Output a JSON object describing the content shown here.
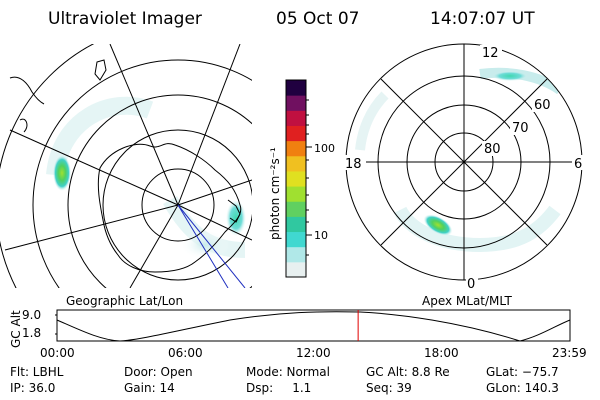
{
  "header": {
    "instrument": "Ultraviolet Imager",
    "date": "05 Oct 07",
    "time": "14:07:07 UT"
  },
  "colorbar": {
    "unit": "photon cm⁻²s⁻¹",
    "ticks": [
      "100",
      "10"
    ],
    "colors": [
      "#e8f0f0",
      "#b0e8e8",
      "#40d8d0",
      "#30c8a0",
      "#60d060",
      "#a0e030",
      "#e0e020",
      "#f0c020",
      "#f08010",
      "#e02020",
      "#c01040",
      "#701060",
      "#200040"
    ]
  },
  "left_map": {
    "caption": "Geographic Lat/Lon"
  },
  "right_map": {
    "caption": "Apex MLat/MLT",
    "mlt_labels": {
      "top": "12",
      "left": "18",
      "right": "6",
      "bottom": "0"
    },
    "mlat_labels": [
      "60",
      "70",
      "80"
    ]
  },
  "altitude_strip": {
    "axis_label": "GC Alt",
    "y_ticks": [
      "9.0",
      "1.8"
    ],
    "time_ticks": [
      "00:00",
      "06:00",
      "12:00",
      "18:00",
      "23:59"
    ],
    "current_time_fraction": 0.587,
    "marker_color": "#e00000"
  },
  "status": {
    "row1": [
      {
        "key": "flt",
        "text": "Flt: LBHL"
      },
      {
        "key": "door",
        "text": "Door: Open"
      },
      {
        "key": "mode",
        "text": "Mode: Normal"
      },
      {
        "key": "gcalt",
        "text": "GC Alt: 8.8 Re"
      },
      {
        "key": "glat",
        "text": "GLat: −75.7"
      }
    ],
    "row2": [
      {
        "key": "ip",
        "text": "IP: 36.0"
      },
      {
        "key": "gain",
        "text": "Gain: 14"
      },
      {
        "key": "dsp",
        "text": "Dsp:     1.1"
      },
      {
        "key": "seq",
        "text": "Seq: 39"
      },
      {
        "key": "glon",
        "text": "GLon: 140.3"
      }
    ]
  }
}
